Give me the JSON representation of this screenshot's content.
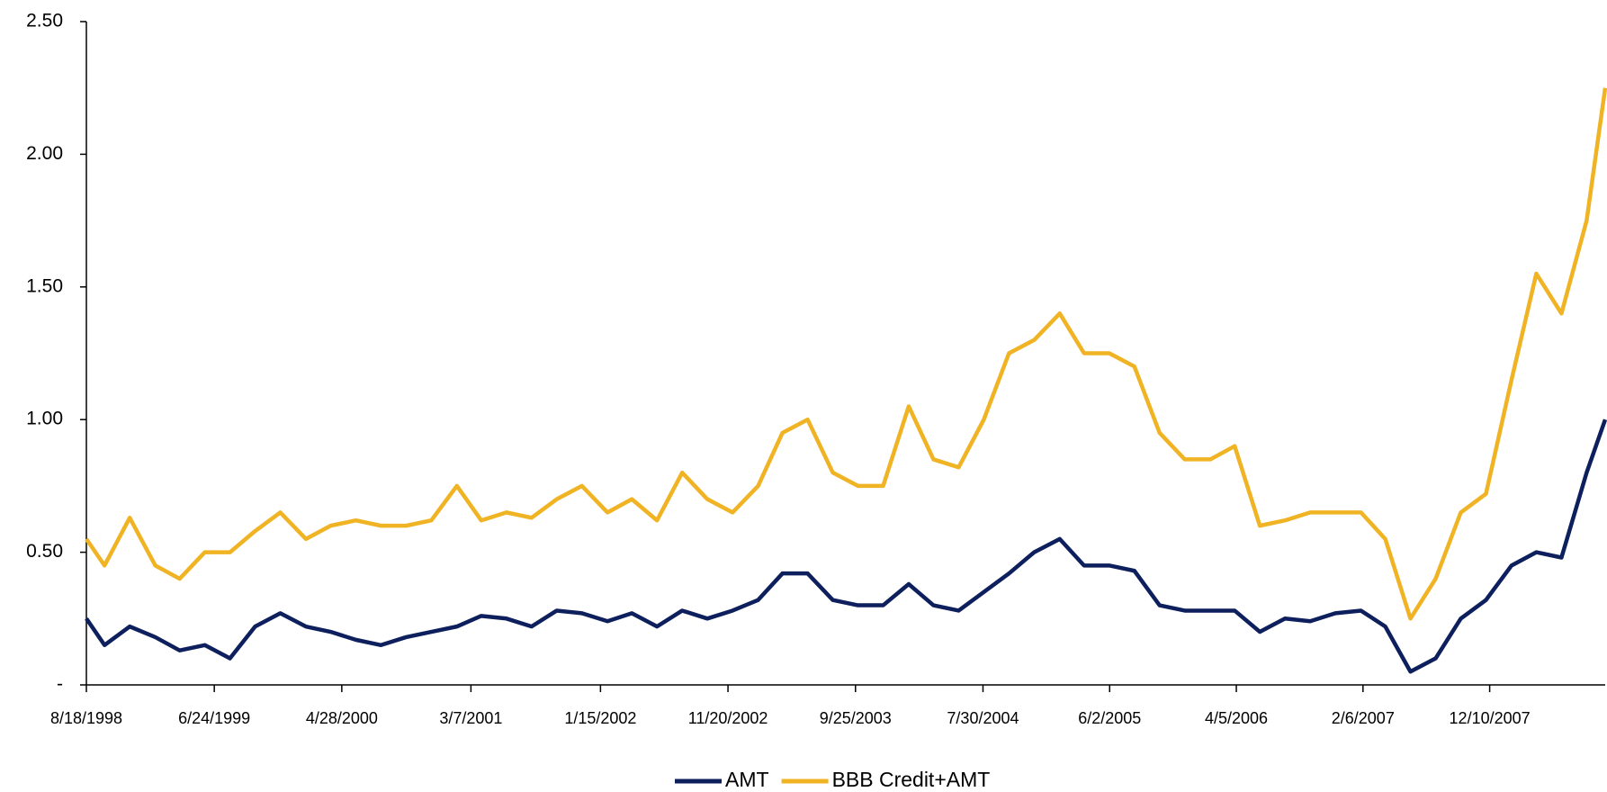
{
  "chart_data": {
    "type": "line",
    "x": [
      "1998-08-18",
      "1998-10-01",
      "1998-12-01",
      "1999-02-01",
      "1999-04-01",
      "1999-06-01",
      "1999-08-01",
      "1999-10-01",
      "1999-12-01",
      "2000-02-01",
      "2000-04-01",
      "2000-06-01",
      "2000-08-01",
      "2000-10-01",
      "2000-12-01",
      "2001-02-01",
      "2001-04-01",
      "2001-06-01",
      "2001-08-01",
      "2001-10-01",
      "2001-12-01",
      "2002-02-01",
      "2002-04-01",
      "2002-06-01",
      "2002-08-01",
      "2002-10-01",
      "2002-12-01",
      "2003-02-01",
      "2003-04-01",
      "2003-06-01",
      "2003-08-01",
      "2003-10-01",
      "2003-12-01",
      "2004-02-01",
      "2004-04-01",
      "2004-06-01",
      "2004-08-01",
      "2004-10-01",
      "2004-12-01",
      "2005-02-01",
      "2005-04-01",
      "2005-06-01",
      "2005-08-01",
      "2005-10-01",
      "2005-12-01",
      "2006-02-01",
      "2006-04-01",
      "2006-06-01",
      "2006-08-01",
      "2006-10-01",
      "2006-12-01",
      "2007-02-01",
      "2007-04-01",
      "2007-06-01",
      "2007-08-01",
      "2007-10-01",
      "2007-12-01",
      "2008-02-01",
      "2008-04-01",
      "2008-06-01",
      "2008-08-01",
      "2008-09-15"
    ],
    "series": [
      {
        "name": "AMT",
        "color": "#0d1f5c",
        "values": [
          0.25,
          0.15,
          0.22,
          0.18,
          0.13,
          0.15,
          0.1,
          0.22,
          0.27,
          0.22,
          0.2,
          0.17,
          0.15,
          0.18,
          0.2,
          0.22,
          0.26,
          0.25,
          0.22,
          0.28,
          0.27,
          0.24,
          0.27,
          0.22,
          0.28,
          0.25,
          0.28,
          0.32,
          0.42,
          0.42,
          0.32,
          0.3,
          0.3,
          0.38,
          0.3,
          0.28,
          0.35,
          0.42,
          0.5,
          0.55,
          0.45,
          0.45,
          0.43,
          0.3,
          0.28,
          0.28,
          0.28,
          0.2,
          0.25,
          0.24,
          0.27,
          0.28,
          0.22,
          0.05,
          0.1,
          0.25,
          0.32,
          0.45,
          0.5,
          0.48,
          0.8,
          1.0
        ]
      },
      {
        "name": "BBB Credit+AMT",
        "color": "#f0b323",
        "values": [
          0.55,
          0.45,
          0.63,
          0.45,
          0.4,
          0.5,
          0.5,
          0.58,
          0.65,
          0.55,
          0.6,
          0.62,
          0.6,
          0.6,
          0.62,
          0.75,
          0.62,
          0.65,
          0.63,
          0.7,
          0.75,
          0.65,
          0.7,
          0.62,
          0.8,
          0.7,
          0.65,
          0.75,
          0.95,
          1.0,
          0.8,
          0.75,
          0.75,
          1.05,
          0.85,
          0.82,
          1.0,
          1.25,
          1.3,
          1.4,
          1.25,
          1.25,
          1.2,
          0.95,
          0.85,
          0.85,
          0.9,
          0.6,
          0.62,
          0.65,
          0.65,
          0.65,
          0.55,
          0.25,
          0.4,
          0.65,
          0.72,
          1.15,
          1.55,
          1.4,
          1.75,
          2.25
        ]
      }
    ],
    "xlim": [
      "1998-08-18",
      "2008-09-15"
    ],
    "xticks": [
      {
        "value": "1998-08-18",
        "label": "8/18/1998"
      },
      {
        "value": "1999-06-24",
        "label": "6/24/1999"
      },
      {
        "value": "2000-04-28",
        "label": "4/28/2000"
      },
      {
        "value": "2001-03-07",
        "label": "3/7/2001"
      },
      {
        "value": "2002-01-15",
        "label": "1/15/2002"
      },
      {
        "value": "2002-11-20",
        "label": "11/20/2002"
      },
      {
        "value": "2003-09-25",
        "label": "9/25/2003"
      },
      {
        "value": "2004-07-30",
        "label": "7/30/2004"
      },
      {
        "value": "2005-06-02",
        "label": "6/2/2005"
      },
      {
        "value": "2006-04-05",
        "label": "4/5/2006"
      },
      {
        "value": "2007-02-06",
        "label": "2/6/2007"
      },
      {
        "value": "2007-12-10",
        "label": "12/10/2007"
      }
    ],
    "ylim": [
      0,
      2.5
    ],
    "yticks": [
      {
        "value": 0,
        "label": "-"
      },
      {
        "value": 0.5,
        "label": "0.50"
      },
      {
        "value": 1,
        "label": "1.00"
      },
      {
        "value": 1.5,
        "label": "1.50"
      },
      {
        "value": 2,
        "label": "2.00"
      },
      {
        "value": 2.5,
        "label": "2.50"
      }
    ],
    "grid": false,
    "legend": "bottom"
  }
}
